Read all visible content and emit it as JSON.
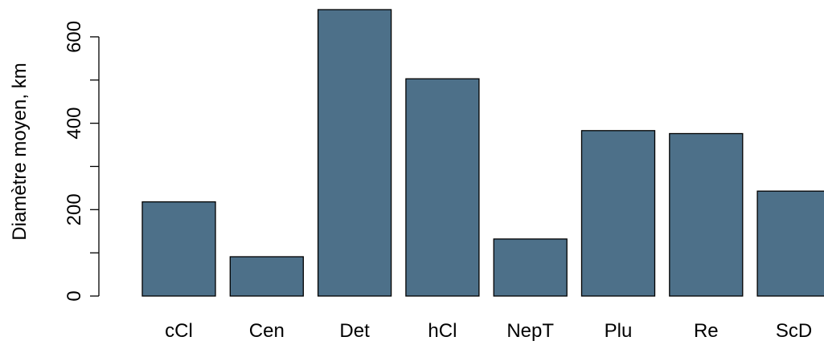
{
  "chart_data": {
    "type": "bar",
    "ylabel": "Diamètre moyen, km",
    "xlabel": "",
    "title": "",
    "categories": [
      "cCl",
      "Cen",
      "Det",
      "hCl",
      "NepT",
      "Plu",
      "Re",
      "ScD"
    ],
    "values": [
      218,
      91,
      663,
      503,
      132,
      383,
      376,
      243
    ],
    "ylim": [
      0,
      663
    ],
    "yticks": [
      0,
      200,
      400,
      600
    ],
    "yminor_ticks": [
      100,
      300,
      500
    ],
    "ytick_labels": [
      "0",
      "200",
      "400",
      "600"
    ],
    "bar_color": "#4d7089",
    "grid": false,
    "legend": "none"
  }
}
